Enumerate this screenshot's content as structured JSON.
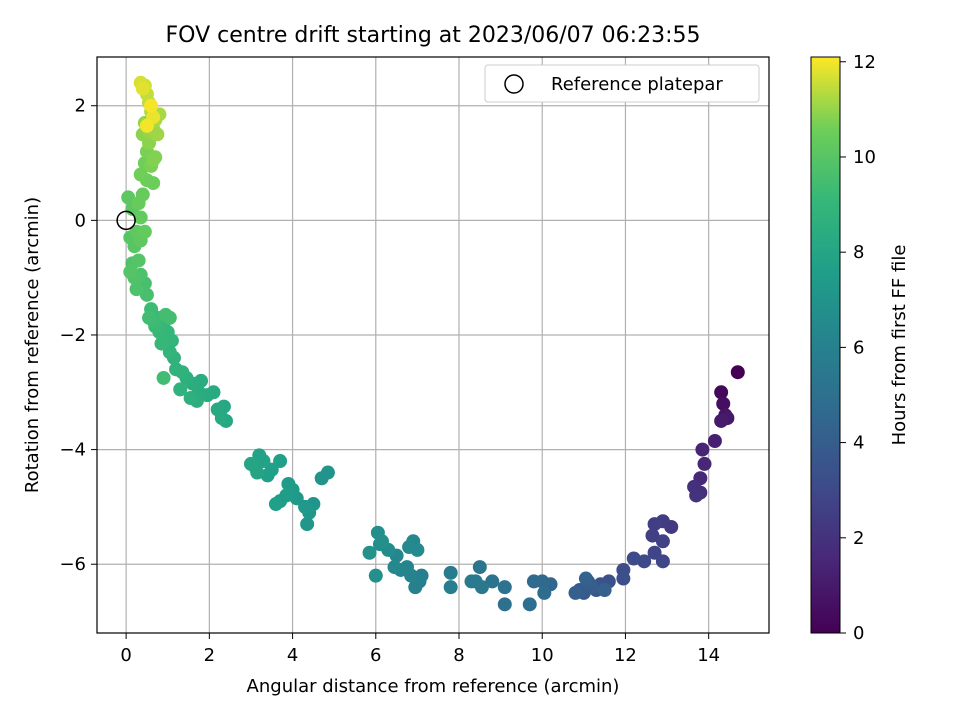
{
  "chart_data": {
    "type": "scatter",
    "title": "FOV centre drift starting at 2023/06/07 06:23:55",
    "xlabel": "Angular distance from reference (arcmin)",
    "ylabel": "Rotation from reference (arcmin)",
    "xlim": [
      -0.7,
      15.45
    ],
    "ylim": [
      -7.2,
      2.85
    ],
    "xticks": [
      0,
      2,
      4,
      6,
      8,
      10,
      12,
      14
    ],
    "yticks": [
      -6,
      -4,
      -2,
      0,
      2
    ],
    "xtick_labels": [
      "0",
      "2",
      "4",
      "6",
      "8",
      "10",
      "12",
      "14"
    ],
    "ytick_labels": [
      "−6",
      "−4",
      "−2",
      "0",
      "2"
    ],
    "grid": true,
    "legend": {
      "position": "top-right",
      "entries": [
        "Reference platepar"
      ]
    },
    "reference_point": {
      "x": 0,
      "y": 0,
      "marker": "open-circle"
    },
    "colorbar": {
      "label": "Hours from first FF file",
      "range": [
        0,
        12.1
      ],
      "ticks": [
        0,
        2,
        4,
        6,
        8,
        10,
        12
      ],
      "tick_labels": [
        "0",
        "2",
        "4",
        "6",
        "8",
        "10",
        "12"
      ],
      "colormap": "viridis"
    },
    "series": [
      {
        "columns": [
          "x",
          "y",
          "hours"
        ],
        "points": [
          [
            14.7,
            -2.65,
            0.0
          ],
          [
            14.3,
            -3.0,
            0.3
          ],
          [
            14.35,
            -3.2,
            0.5
          ],
          [
            14.4,
            -3.4,
            0.7
          ],
          [
            14.45,
            -3.45,
            0.9
          ],
          [
            14.3,
            -3.5,
            1.0
          ],
          [
            14.15,
            -3.85,
            1.2
          ],
          [
            13.85,
            -4.0,
            1.4
          ],
          [
            13.9,
            -4.25,
            1.5
          ],
          [
            13.8,
            -4.5,
            1.6
          ],
          [
            13.8,
            -4.75,
            1.8
          ],
          [
            13.65,
            -4.65,
            1.9
          ],
          [
            13.7,
            -4.8,
            2.0
          ],
          [
            13.1,
            -5.35,
            2.3
          ],
          [
            12.9,
            -5.25,
            2.4
          ],
          [
            12.7,
            -5.3,
            2.5
          ],
          [
            12.65,
            -5.5,
            2.6
          ],
          [
            12.9,
            -5.6,
            2.7
          ],
          [
            12.7,
            -5.8,
            2.8
          ],
          [
            12.9,
            -5.95,
            2.9
          ],
          [
            12.45,
            -5.95,
            3.0
          ],
          [
            12.2,
            -5.9,
            3.1
          ],
          [
            11.95,
            -6.1,
            3.2
          ],
          [
            11.95,
            -6.25,
            3.3
          ],
          [
            11.6,
            -6.3,
            3.4
          ],
          [
            11.4,
            -6.35,
            3.5
          ],
          [
            11.3,
            -6.45,
            3.6
          ],
          [
            11.1,
            -6.3,
            3.7
          ],
          [
            11.0,
            -6.5,
            3.8
          ],
          [
            10.9,
            -6.45,
            3.9
          ],
          [
            11.2,
            -6.4,
            4.0
          ],
          [
            10.8,
            -6.5,
            4.1
          ],
          [
            11.5,
            -6.45,
            4.2
          ],
          [
            11.05,
            -6.25,
            4.3
          ],
          [
            10.2,
            -6.35,
            4.5
          ],
          [
            10.0,
            -6.3,
            4.6
          ],
          [
            9.8,
            -6.3,
            4.7
          ],
          [
            10.05,
            -6.5,
            4.8
          ],
          [
            9.7,
            -6.7,
            4.9
          ],
          [
            9.1,
            -6.7,
            5.0
          ],
          [
            9.1,
            -6.4,
            5.1
          ],
          [
            8.8,
            -6.3,
            5.2
          ],
          [
            8.5,
            -6.05,
            5.3
          ],
          [
            8.55,
            -6.4,
            5.4
          ],
          [
            8.4,
            -6.3,
            5.5
          ],
          [
            8.3,
            -6.3,
            5.6
          ],
          [
            7.8,
            -6.15,
            5.7
          ],
          [
            7.8,
            -6.4,
            5.8
          ],
          [
            7.1,
            -6.2,
            5.9
          ],
          [
            7.05,
            -6.3,
            6.0
          ],
          [
            6.95,
            -6.4,
            6.0
          ],
          [
            6.85,
            -6.2,
            6.1
          ],
          [
            6.75,
            -6.05,
            6.2
          ],
          [
            6.6,
            -6.1,
            6.2
          ],
          [
            6.5,
            -5.85,
            6.3
          ],
          [
            6.45,
            -6.05,
            6.4
          ],
          [
            6.9,
            -5.6,
            6.4
          ],
          [
            6.8,
            -5.7,
            6.5
          ],
          [
            7.0,
            -5.75,
            6.5
          ],
          [
            6.3,
            -5.75,
            6.6
          ],
          [
            6.1,
            -5.65,
            6.7
          ],
          [
            6.05,
            -5.45,
            6.7
          ],
          [
            6.15,
            -5.6,
            6.8
          ],
          [
            6.0,
            -6.2,
            6.8
          ],
          [
            5.85,
            -5.8,
            6.9
          ],
          [
            4.85,
            -4.4,
            7.0
          ],
          [
            4.7,
            -4.5,
            7.0
          ],
          [
            4.5,
            -4.95,
            7.1
          ],
          [
            4.4,
            -5.1,
            7.2
          ],
          [
            4.35,
            -5.3,
            7.2
          ],
          [
            4.3,
            -5.0,
            7.3
          ],
          [
            4.1,
            -4.85,
            7.3
          ],
          [
            4.0,
            -4.7,
            7.4
          ],
          [
            3.9,
            -4.6,
            7.4
          ],
          [
            3.85,
            -4.8,
            7.5
          ],
          [
            3.7,
            -4.9,
            7.5
          ],
          [
            3.6,
            -4.95,
            7.6
          ],
          [
            3.7,
            -4.2,
            7.6
          ],
          [
            3.5,
            -4.35,
            7.7
          ],
          [
            3.4,
            -4.45,
            7.7
          ],
          [
            3.3,
            -4.2,
            7.8
          ],
          [
            3.2,
            -4.1,
            7.8
          ],
          [
            3.1,
            -4.3,
            7.9
          ],
          [
            3.15,
            -4.4,
            7.9
          ],
          [
            3.0,
            -4.25,
            8.0
          ],
          [
            2.4,
            -3.5,
            8.1
          ],
          [
            2.35,
            -3.25,
            8.1
          ],
          [
            2.3,
            -3.45,
            8.2
          ],
          [
            2.2,
            -3.3,
            8.2
          ],
          [
            2.1,
            -3.0,
            8.3
          ],
          [
            1.95,
            -3.05,
            8.3
          ],
          [
            1.8,
            -2.8,
            8.4
          ],
          [
            1.75,
            -3.0,
            8.4
          ],
          [
            1.7,
            -3.15,
            8.5
          ],
          [
            1.6,
            -2.85,
            8.5
          ],
          [
            1.55,
            -3.1,
            8.6
          ],
          [
            1.45,
            -2.75,
            8.6
          ],
          [
            1.35,
            -2.65,
            8.7
          ],
          [
            1.3,
            -2.95,
            8.7
          ],
          [
            1.2,
            -2.6,
            8.8
          ],
          [
            1.15,
            -2.4,
            8.8
          ],
          [
            1.1,
            -2.1,
            8.9
          ],
          [
            1.05,
            -2.3,
            8.9
          ],
          [
            1.0,
            -1.95,
            9.0
          ],
          [
            0.9,
            -1.8,
            9.0
          ],
          [
            0.85,
            -2.15,
            9.1
          ],
          [
            0.8,
            -1.95,
            9.1
          ],
          [
            0.75,
            -1.7,
            9.2
          ],
          [
            0.7,
            -1.85,
            9.2
          ],
          [
            0.65,
            -1.75,
            9.3
          ],
          [
            0.6,
            -1.55,
            9.3
          ],
          [
            0.55,
            -1.7,
            9.4
          ],
          [
            0.9,
            -2.75,
            9.4
          ],
          [
            0.95,
            -1.65,
            9.5
          ],
          [
            1.05,
            -1.7,
            9.5
          ],
          [
            0.5,
            -1.3,
            9.6
          ],
          [
            0.45,
            -1.1,
            9.6
          ],
          [
            0.35,
            -0.95,
            9.7
          ],
          [
            0.25,
            -1.2,
            9.7
          ],
          [
            0.2,
            -1.0,
            9.8
          ],
          [
            0.15,
            -0.75,
            9.8
          ],
          [
            0.1,
            -0.9,
            9.9
          ],
          [
            0.3,
            -0.7,
            9.9
          ],
          [
            0.2,
            -0.45,
            10.0
          ],
          [
            0.1,
            -0.3,
            10.0
          ],
          [
            0.05,
            0.4,
            10.1
          ],
          [
            0.15,
            0.2,
            10.1
          ],
          [
            0.25,
            -0.2,
            10.2
          ],
          [
            0.35,
            -0.35,
            10.2
          ],
          [
            0.45,
            -0.2,
            10.3
          ],
          [
            0.35,
            0.05,
            10.3
          ],
          [
            0.3,
            0.3,
            10.4
          ],
          [
            0.4,
            0.45,
            10.4
          ],
          [
            0.5,
            0.7,
            10.5
          ],
          [
            0.65,
            0.65,
            10.5
          ],
          [
            0.35,
            0.8,
            10.6
          ],
          [
            0.45,
            1.0,
            10.6
          ],
          [
            0.5,
            1.2,
            10.7
          ],
          [
            0.6,
            0.95,
            10.7
          ],
          [
            0.65,
            1.05,
            10.8
          ],
          [
            0.7,
            1.1,
            10.8
          ],
          [
            0.55,
            1.35,
            10.9
          ],
          [
            0.4,
            1.5,
            10.9
          ],
          [
            0.45,
            1.7,
            11.0
          ],
          [
            0.55,
            1.55,
            11.0
          ],
          [
            0.65,
            1.6,
            11.1
          ],
          [
            0.75,
            1.5,
            11.1
          ],
          [
            0.7,
            1.75,
            11.2
          ],
          [
            0.8,
            1.85,
            11.2
          ],
          [
            0.6,
            1.9,
            11.3
          ],
          [
            0.55,
            2.05,
            11.4
          ],
          [
            0.5,
            2.2,
            11.5
          ],
          [
            0.45,
            2.35,
            11.6
          ],
          [
            0.35,
            2.4,
            11.7
          ],
          [
            0.4,
            2.3,
            11.8
          ],
          [
            0.65,
            1.8,
            11.9
          ],
          [
            0.6,
            2.0,
            12.0
          ],
          [
            0.5,
            1.65,
            12.0
          ]
        ]
      }
    ]
  }
}
